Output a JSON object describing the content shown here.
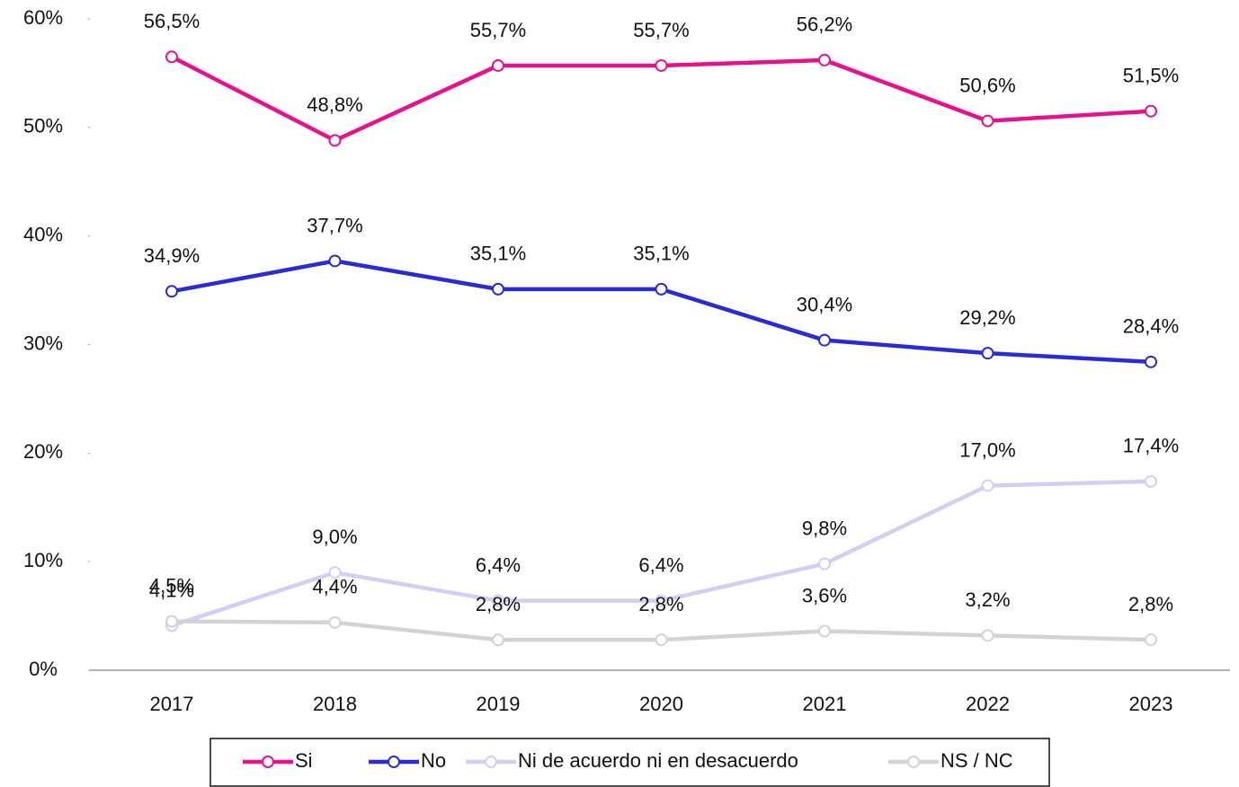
{
  "chart_data": {
    "type": "line",
    "categories": [
      "2017",
      "2018",
      "2019",
      "2020",
      "2021",
      "2022",
      "2023"
    ],
    "series": [
      {
        "name": "Si",
        "color": "#e5128f",
        "values": [
          56.5,
          48.8,
          55.7,
          55.7,
          56.2,
          50.6,
          51.5
        ],
        "value_labels": [
          "56,5%",
          "48,8%",
          "55,7%",
          "55,7%",
          "56,2%",
          "50,6%",
          "51,5%"
        ]
      },
      {
        "name": "No",
        "color": "#2b2bd6",
        "values": [
          34.9,
          37.7,
          35.1,
          35.1,
          30.4,
          29.2,
          28.4
        ],
        "value_labels": [
          "34,9%",
          "37,7%",
          "35,1%",
          "35,1%",
          "30,4%",
          "29,2%",
          "28,4%"
        ]
      },
      {
        "name": "Ni de acuerdo ni en desacuerdo",
        "color": "#d0d0f7",
        "values": [
          4.1,
          9.0,
          6.4,
          6.4,
          9.8,
          17.0,
          17.4
        ],
        "value_labels": [
          "4,1%",
          "9,0%",
          "6,4%",
          "6,4%",
          "9,8%",
          "17,0%",
          "17,4%"
        ]
      },
      {
        "name": "NS / NC",
        "color": "#d3d3d3",
        "values": [
          4.5,
          4.4,
          2.8,
          2.8,
          3.6,
          3.2,
          2.8
        ],
        "value_labels": [
          "4,5%",
          "4,4%",
          "2,8%",
          "2,8%",
          "3,6%",
          "3,2%",
          "2,8%"
        ]
      }
    ],
    "ylim": [
      0,
      60
    ],
    "yticks": [
      {
        "value": 0,
        "label": "0%"
      },
      {
        "value": 10,
        "label": "10%"
      },
      {
        "value": 20,
        "label": "20%"
      },
      {
        "value": 30,
        "label": "30%"
      },
      {
        "value": 40,
        "label": "40%"
      },
      {
        "value": 50,
        "label": "50%"
      },
      {
        "value": 60,
        "label": "60%"
      }
    ],
    "grid": false,
    "legend": "bottom"
  }
}
